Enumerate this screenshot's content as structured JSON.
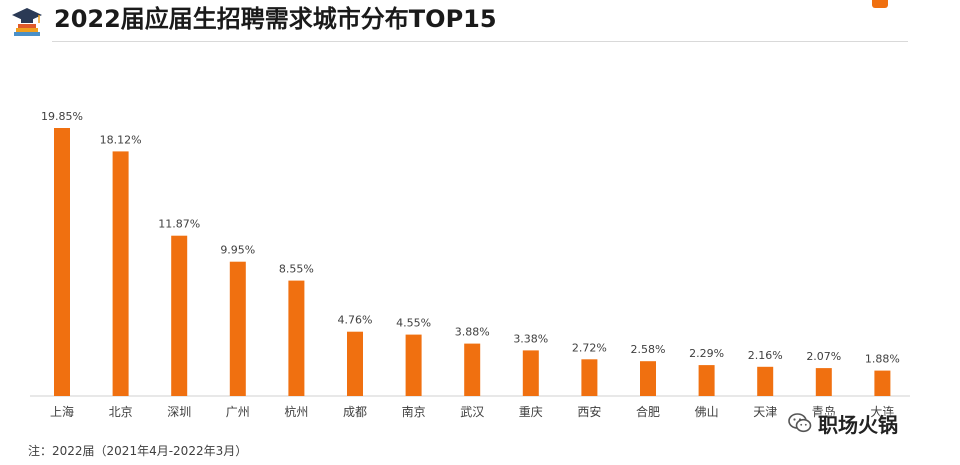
{
  "header": {
    "title": "2022届应届生招聘需求城市分布TOP15",
    "icon": "graduation-cap-books-icon"
  },
  "colors": {
    "bar": "#f07010",
    "accent": "#f07010",
    "text": "#404040"
  },
  "chart_data": {
    "type": "bar",
    "title": "2022届应届生招聘需求城市分布TOP15",
    "categories": [
      "上海",
      "北京",
      "深圳",
      "广州",
      "杭州",
      "成都",
      "南京",
      "武汉",
      "重庆",
      "西安",
      "合肥",
      "佛山",
      "天津",
      "青岛",
      "大连"
    ],
    "values": [
      19.85,
      18.12,
      11.87,
      9.95,
      8.55,
      4.76,
      4.55,
      3.88,
      3.38,
      2.72,
      2.58,
      2.29,
      2.16,
      2.07,
      1.88
    ],
    "value_labels": [
      "19.85%",
      "18.12%",
      "11.87%",
      "9.95%",
      "8.55%",
      "4.76%",
      "4.55%",
      "3.88%",
      "3.38%",
      "2.72%",
      "2.58%",
      "2.29%",
      "2.16%",
      "2.07%",
      "1.88%"
    ],
    "unit": "%",
    "ylim": [
      0,
      20
    ],
    "grid": false,
    "legend": "none",
    "xlabel": "",
    "ylabel": ""
  },
  "note": "注：2022届（2021年4月-2022年3月）",
  "watermark": {
    "text": "职场火锅",
    "icon": "wechat-icon"
  }
}
